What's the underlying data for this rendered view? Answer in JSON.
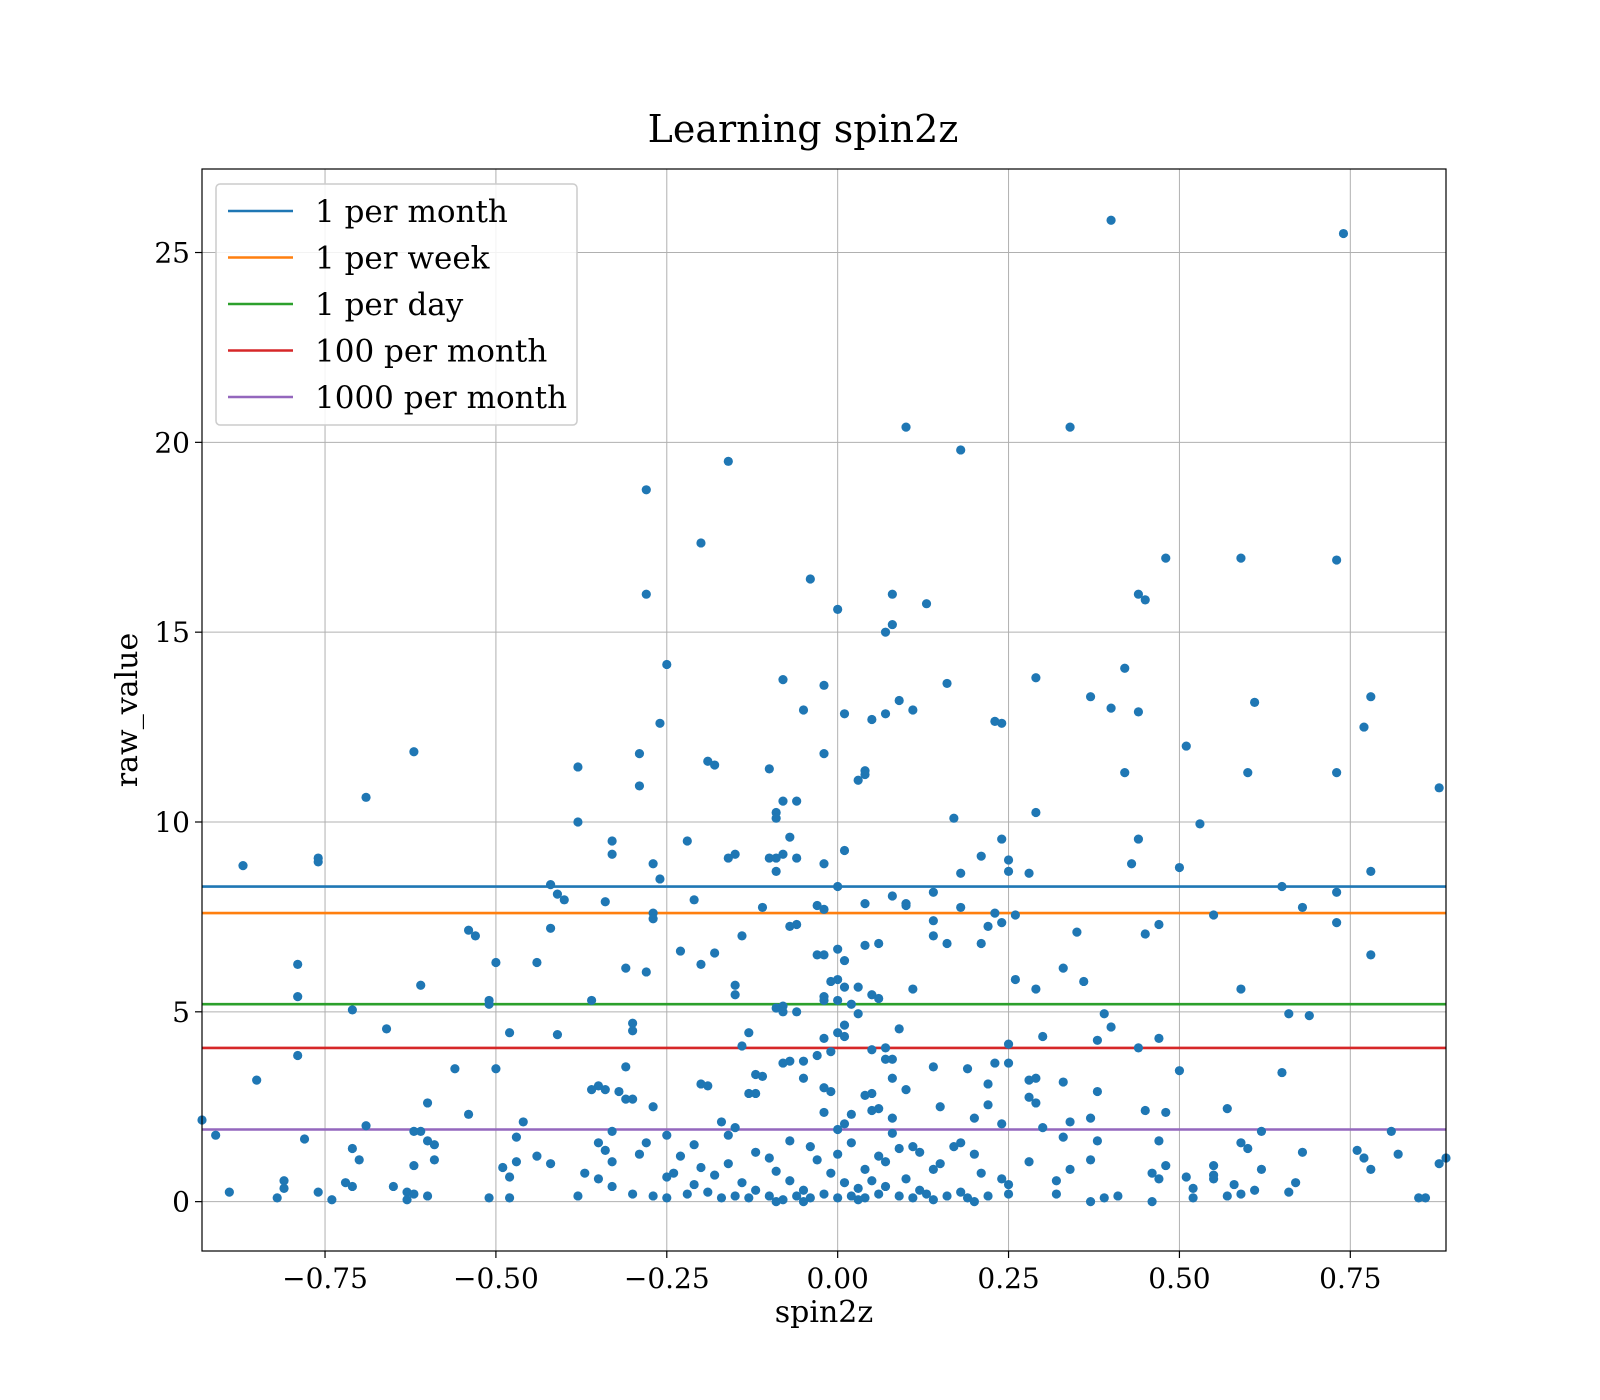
{
  "chart_data": {
    "type": "scatter",
    "title": "Learning spin2z",
    "xlabel": "spin2z",
    "ylabel": "raw_value",
    "xlim": [
      -0.93,
      0.89
    ],
    "ylim": [
      -1.3,
      27.2
    ],
    "xticks": [
      -0.75,
      -0.5,
      -0.25,
      0.0,
      0.25,
      0.5,
      0.75
    ],
    "xtick_labels": [
      "−0.75",
      "−0.50",
      "−0.25",
      "0.00",
      "0.25",
      "0.50",
      "0.75"
    ],
    "yticks": [
      0,
      5,
      10,
      15,
      20,
      25
    ],
    "ytick_labels": [
      "0",
      "5",
      "10",
      "15",
      "20",
      "25"
    ],
    "grid": true,
    "legend_position": "top-left",
    "point_color": "#1f77b4",
    "hlines": [
      {
        "name": "1 per month",
        "y": 8.3,
        "color": "#1f77b4"
      },
      {
        "name": "1 per week",
        "y": 7.6,
        "color": "#ff7f0e"
      },
      {
        "name": "1 per day",
        "y": 5.2,
        "color": "#2ca02c"
      },
      {
        "name": "100 per month",
        "y": 4.05,
        "color": "#d62728"
      },
      {
        "name": "1000 per month",
        "y": 1.9,
        "color": "#9467bd"
      }
    ],
    "points": [
      [
        0.4,
        25.85
      ],
      [
        0.74,
        25.5
      ],
      [
        0.1,
        20.4
      ],
      [
        0.34,
        20.4
      ],
      [
        0.18,
        19.8
      ],
      [
        -0.16,
        19.5
      ],
      [
        -0.28,
        18.75
      ],
      [
        -0.2,
        17.35
      ],
      [
        0.48,
        16.95
      ],
      [
        0.59,
        16.95
      ],
      [
        0.73,
        16.9
      ],
      [
        -0.04,
        16.4
      ],
      [
        -0.28,
        16.0
      ],
      [
        0.08,
        16.0
      ],
      [
        0.44,
        16.0
      ],
      [
        0.45,
        15.85
      ],
      [
        0.13,
        15.75
      ],
      [
        0.0,
        15.6
      ],
      [
        0.08,
        15.2
      ],
      [
        0.07,
        15.0
      ],
      [
        -0.25,
        14.15
      ],
      [
        0.42,
        14.05
      ],
      [
        -0.08,
        13.75
      ],
      [
        0.29,
        13.8
      ],
      [
        0.16,
        13.65
      ],
      [
        -0.02,
        13.6
      ],
      [
        0.37,
        13.3
      ],
      [
        0.78,
        13.3
      ],
      [
        0.09,
        13.2
      ],
      [
        0.61,
        13.15
      ],
      [
        0.4,
        13.0
      ],
      [
        0.44,
        12.9
      ],
      [
        -0.05,
        12.95
      ],
      [
        0.11,
        12.95
      ],
      [
        0.01,
        12.85
      ],
      [
        0.07,
        12.85
      ],
      [
        0.05,
        12.7
      ],
      [
        0.23,
        12.65
      ],
      [
        0.24,
        12.6
      ],
      [
        -0.26,
        12.6
      ],
      [
        0.77,
        12.5
      ],
      [
        0.51,
        12.0
      ],
      [
        -0.62,
        11.85
      ],
      [
        -0.29,
        11.8
      ],
      [
        -0.02,
        11.8
      ],
      [
        -0.19,
        11.6
      ],
      [
        -0.18,
        11.5
      ],
      [
        -0.38,
        11.45
      ],
      [
        -0.1,
        11.4
      ],
      [
        0.04,
        11.35
      ],
      [
        0.04,
        11.25
      ],
      [
        0.42,
        11.3
      ],
      [
        0.6,
        11.3
      ],
      [
        0.73,
        11.3
      ],
      [
        0.03,
        11.1
      ],
      [
        -0.29,
        10.95
      ],
      [
        0.88,
        10.9
      ],
      [
        -0.69,
        10.65
      ],
      [
        -0.08,
        10.55
      ],
      [
        -0.06,
        10.55
      ],
      [
        -0.09,
        10.25
      ],
      [
        0.29,
        10.25
      ],
      [
        -0.09,
        10.1
      ],
      [
        0.17,
        10.1
      ],
      [
        -0.38,
        10.0
      ],
      [
        0.53,
        9.95
      ],
      [
        0.44,
        9.55
      ],
      [
        0.24,
        9.55
      ],
      [
        -0.33,
        9.5
      ],
      [
        -0.22,
        9.5
      ],
      [
        -0.07,
        9.6
      ],
      [
        0.01,
        9.25
      ],
      [
        -0.33,
        9.15
      ],
      [
        -0.15,
        9.15
      ],
      [
        -0.1,
        9.05
      ],
      [
        -0.09,
        9.05
      ],
      [
        -0.16,
        9.05
      ],
      [
        -0.08,
        9.15
      ],
      [
        -0.06,
        9.05
      ],
      [
        0.21,
        9.1
      ],
      [
        0.25,
        9.0
      ],
      [
        -0.76,
        9.05
      ],
      [
        -0.76,
        8.95
      ],
      [
        -0.27,
        8.9
      ],
      [
        -0.02,
        8.9
      ],
      [
        0.43,
        8.9
      ],
      [
        -0.87,
        8.85
      ],
      [
        0.5,
        8.8
      ],
      [
        0.25,
        8.7
      ],
      [
        -0.09,
        8.7
      ],
      [
        0.28,
        8.65
      ],
      [
        0.78,
        8.7
      ],
      [
        0.18,
        8.65
      ],
      [
        -0.26,
        8.5
      ],
      [
        -0.42,
        8.35
      ],
      [
        0.0,
        8.3
      ],
      [
        0.65,
        8.3
      ],
      [
        0.14,
        8.15
      ],
      [
        0.73,
        8.15
      ],
      [
        -0.41,
        8.1
      ],
      [
        0.08,
        8.05
      ],
      [
        -0.4,
        7.95
      ],
      [
        -0.21,
        7.95
      ],
      [
        -0.34,
        7.9
      ],
      [
        0.04,
        7.85
      ],
      [
        0.1,
        7.85
      ],
      [
        0.1,
        7.8
      ],
      [
        -0.03,
        7.8
      ],
      [
        -0.02,
        7.7
      ],
      [
        -0.11,
        7.75
      ],
      [
        0.18,
        7.75
      ],
      [
        0.68,
        7.75
      ],
      [
        -0.27,
        7.6
      ],
      [
        0.23,
        7.6
      ],
      [
        0.26,
        7.55
      ],
      [
        0.55,
        7.55
      ],
      [
        -0.27,
        7.45
      ],
      [
        0.14,
        7.4
      ],
      [
        0.24,
        7.35
      ],
      [
        0.73,
        7.35
      ],
      [
        0.47,
        7.3
      ],
      [
        -0.06,
        7.3
      ],
      [
        -0.07,
        7.25
      ],
      [
        0.22,
        7.25
      ],
      [
        -0.42,
        7.2
      ],
      [
        -0.54,
        7.15
      ],
      [
        0.35,
        7.1
      ],
      [
        0.45,
        7.05
      ],
      [
        -0.53,
        7.0
      ],
      [
        -0.14,
        7.0
      ],
      [
        0.14,
        7.0
      ],
      [
        0.16,
        6.8
      ],
      [
        0.06,
        6.8
      ],
      [
        0.04,
        6.75
      ],
      [
        0.21,
        6.8
      ],
      [
        0.0,
        6.65
      ],
      [
        -0.23,
        6.6
      ],
      [
        -0.18,
        6.55
      ],
      [
        -0.03,
        6.5
      ],
      [
        -0.02,
        6.5
      ],
      [
        0.78,
        6.5
      ],
      [
        0.01,
        6.35
      ],
      [
        -0.5,
        6.3
      ],
      [
        -0.44,
        6.3
      ],
      [
        -0.2,
        6.25
      ],
      [
        -0.31,
        6.15
      ],
      [
        0.33,
        6.15
      ],
      [
        -0.28,
        6.05
      ],
      [
        -0.79,
        6.25
      ],
      [
        0.26,
        5.85
      ],
      [
        0.0,
        5.85
      ],
      [
        -0.01,
        5.8
      ],
      [
        0.36,
        5.8
      ],
      [
        0.03,
        5.65
      ],
      [
        0.01,
        5.65
      ],
      [
        -0.15,
        5.7
      ],
      [
        -0.61,
        5.7
      ],
      [
        0.11,
        5.6
      ],
      [
        0.29,
        5.6
      ],
      [
        0.59,
        5.6
      ],
      [
        -0.15,
        5.45
      ],
      [
        -0.02,
        5.4
      ],
      [
        -0.02,
        5.3
      ],
      [
        0.05,
        5.45
      ],
      [
        0.06,
        5.35
      ],
      [
        -0.79,
        5.4
      ],
      [
        -0.51,
        5.3
      ],
      [
        -0.36,
        5.3
      ],
      [
        0.0,
        5.3
      ],
      [
        -0.51,
        5.2
      ],
      [
        0.02,
        5.2
      ],
      [
        -0.08,
        5.15
      ],
      [
        -0.09,
        5.1
      ],
      [
        -0.71,
        5.05
      ],
      [
        -0.08,
        5.0
      ],
      [
        -0.06,
        5.0
      ],
      [
        0.03,
        4.95
      ],
      [
        0.39,
        4.95
      ],
      [
        0.66,
        4.95
      ],
      [
        0.69,
        4.9
      ],
      [
        -0.3,
        4.7
      ],
      [
        0.01,
        4.65
      ],
      [
        0.4,
        4.6
      ],
      [
        -0.13,
        4.45
      ],
      [
        -0.66,
        4.55
      ],
      [
        0.09,
        4.55
      ],
      [
        -0.48,
        4.45
      ],
      [
        -0.3,
        4.5
      ],
      [
        0.0,
        4.45
      ],
      [
        -0.41,
        4.4
      ],
      [
        0.01,
        4.35
      ],
      [
        -0.02,
        4.3
      ],
      [
        0.3,
        4.35
      ],
      [
        0.47,
        4.3
      ],
      [
        0.38,
        4.25
      ],
      [
        0.25,
        4.15
      ],
      [
        -0.14,
        4.1
      ],
      [
        0.44,
        4.05
      ],
      [
        0.05,
        4.0
      ],
      [
        0.07,
        4.05
      ],
      [
        -0.01,
        3.95
      ],
      [
        -0.79,
        3.85
      ],
      [
        -0.03,
        3.85
      ],
      [
        0.07,
        3.75
      ],
      [
        0.08,
        3.75
      ],
      [
        -0.07,
        3.7
      ],
      [
        -0.08,
        3.65
      ],
      [
        -0.05,
        3.7
      ],
      [
        0.14,
        3.55
      ],
      [
        0.25,
        3.65
      ],
      [
        0.23,
        3.65
      ],
      [
        -0.56,
        3.5
      ],
      [
        -0.5,
        3.5
      ],
      [
        -0.31,
        3.55
      ],
      [
        0.19,
        3.5
      ],
      [
        0.5,
        3.45
      ],
      [
        0.65,
        3.4
      ],
      [
        -0.12,
        3.35
      ],
      [
        -0.11,
        3.3
      ],
      [
        -0.05,
        3.25
      ],
      [
        0.08,
        3.25
      ],
      [
        0.28,
        3.2
      ],
      [
        -0.85,
        3.2
      ],
      [
        0.29,
        3.25
      ],
      [
        0.33,
        3.15
      ],
      [
        -0.2,
        3.1
      ],
      [
        -0.19,
        3.05
      ],
      [
        -0.35,
        3.05
      ],
      [
        -0.02,
        3.0
      ],
      [
        0.22,
        3.1
      ],
      [
        -0.34,
        2.95
      ],
      [
        -0.36,
        2.95
      ],
      [
        0.1,
        2.95
      ],
      [
        0.38,
        2.9
      ],
      [
        -0.01,
        2.9
      ],
      [
        0.05,
        2.85
      ],
      [
        -0.32,
        2.9
      ],
      [
        0.04,
        2.8
      ],
      [
        0.28,
        2.75
      ],
      [
        -0.12,
        2.85
      ],
      [
        -0.13,
        2.85
      ],
      [
        -0.31,
        2.7
      ],
      [
        -0.3,
        2.7
      ],
      [
        -0.6,
        2.6
      ],
      [
        -0.27,
        2.5
      ],
      [
        0.22,
        2.55
      ],
      [
        0.15,
        2.5
      ],
      [
        0.29,
        2.6
      ],
      [
        0.06,
        2.45
      ],
      [
        0.05,
        2.4
      ],
      [
        -0.02,
        2.35
      ],
      [
        0.45,
        2.4
      ],
      [
        0.48,
        2.35
      ],
      [
        0.02,
        2.3
      ],
      [
        0.57,
        2.45
      ],
      [
        -0.54,
        2.3
      ],
      [
        0.37,
        2.2
      ],
      [
        0.2,
        2.2
      ],
      [
        0.08,
        2.2
      ],
      [
        -0.93,
        2.15
      ],
      [
        -0.17,
        2.1
      ],
      [
        0.34,
        2.1
      ],
      [
        0.01,
        2.05
      ],
      [
        0.24,
        2.05
      ],
      [
        -0.69,
        2.0
      ],
      [
        -0.46,
        2.1
      ],
      [
        -0.15,
        1.95
      ],
      [
        0.3,
        1.95
      ],
      [
        0.0,
        1.9
      ],
      [
        -0.61,
        1.85
      ],
      [
        -0.62,
        1.85
      ],
      [
        -0.33,
        1.85
      ],
      [
        0.62,
        1.85
      ],
      [
        0.81,
        1.85
      ],
      [
        -0.91,
        1.75
      ],
      [
        -0.25,
        1.75
      ],
      [
        -0.16,
        1.75
      ],
      [
        0.08,
        1.8
      ],
      [
        -0.47,
        1.7
      ],
      [
        0.33,
        1.7
      ],
      [
        -0.78,
        1.65
      ],
      [
        -0.6,
        1.6
      ],
      [
        -0.35,
        1.55
      ],
      [
        -0.28,
        1.55
      ],
      [
        -0.21,
        1.5
      ],
      [
        0.18,
        1.55
      ],
      [
        0.47,
        1.6
      ],
      [
        0.38,
        1.6
      ],
      [
        0.59,
        1.55
      ],
      [
        -0.59,
        1.5
      ],
      [
        -0.04,
        1.45
      ],
      [
        0.11,
        1.45
      ],
      [
        0.17,
        1.45
      ],
      [
        0.6,
        1.4
      ],
      [
        0.76,
        1.35
      ],
      [
        -0.71,
        1.4
      ],
      [
        -0.34,
        1.35
      ],
      [
        0.68,
        1.3
      ],
      [
        0.82,
        1.25
      ],
      [
        0.89,
        1.15
      ],
      [
        0.2,
        1.25
      ],
      [
        -0.29,
        1.25
      ],
      [
        0.06,
        1.2
      ],
      [
        -0.44,
        1.2
      ],
      [
        -0.1,
        1.15
      ],
      [
        0.77,
        1.15
      ],
      [
        0.37,
        1.1
      ],
      [
        -0.7,
        1.1
      ],
      [
        -0.59,
        1.1
      ],
      [
        -0.47,
        1.05
      ],
      [
        -0.42,
        1.0
      ],
      [
        -0.33,
        1.05
      ],
      [
        0.28,
        1.05
      ],
      [
        0.48,
        0.95
      ],
      [
        0.55,
        0.95
      ],
      [
        0.88,
        1.0
      ],
      [
        -0.62,
        0.95
      ],
      [
        -0.49,
        0.9
      ],
      [
        -0.2,
        0.9
      ],
      [
        0.14,
        0.85
      ],
      [
        0.34,
        0.85
      ],
      [
        0.62,
        0.85
      ],
      [
        0.78,
        0.85
      ],
      [
        -0.37,
        0.75
      ],
      [
        -0.24,
        0.75
      ],
      [
        0.21,
        0.75
      ],
      [
        0.46,
        0.75
      ],
      [
        0.55,
        0.7
      ],
      [
        -0.48,
        0.65
      ],
      [
        -0.25,
        0.65
      ],
      [
        0.51,
        0.65
      ],
      [
        0.55,
        0.6
      ],
      [
        -0.35,
        0.6
      ],
      [
        0.47,
        0.6
      ],
      [
        -0.81,
        0.55
      ],
      [
        -0.72,
        0.5
      ],
      [
        0.32,
        0.55
      ],
      [
        0.67,
        0.5
      ],
      [
        -0.81,
        0.35
      ],
      [
        -0.71,
        0.4
      ],
      [
        -0.65,
        0.4
      ],
      [
        0.25,
        0.45
      ],
      [
        0.58,
        0.45
      ],
      [
        0.52,
        0.35
      ],
      [
        -0.89,
        0.25
      ],
      [
        -0.76,
        0.25
      ],
      [
        -0.63,
        0.25
      ],
      [
        -0.62,
        0.2
      ],
      [
        -0.6,
        0.15
      ],
      [
        -0.51,
        0.1
      ],
      [
        -0.48,
        0.1
      ],
      [
        -0.38,
        0.15
      ],
      [
        -0.3,
        0.2
      ],
      [
        -0.25,
        0.1
      ],
      [
        -0.22,
        0.2
      ],
      [
        -0.17,
        0.1
      ],
      [
        -0.15,
        0.15
      ],
      [
        -0.13,
        0.1
      ],
      [
        -0.1,
        0.15
      ],
      [
        -0.08,
        0.05
      ],
      [
        -0.06,
        0.15
      ],
      [
        -0.04,
        0.1
      ],
      [
        -0.02,
        0.2
      ],
      [
        0.0,
        0.1
      ],
      [
        0.02,
        0.15
      ],
      [
        0.04,
        0.1
      ],
      [
        0.06,
        0.2
      ],
      [
        0.09,
        0.15
      ],
      [
        0.11,
        0.1
      ],
      [
        0.13,
        0.2
      ],
      [
        0.16,
        0.15
      ],
      [
        0.19,
        0.1
      ],
      [
        0.22,
        0.15
      ],
      [
        0.25,
        0.2
      ],
      [
        0.32,
        0.2
      ],
      [
        0.37,
        0.0
      ],
      [
        0.39,
        0.1
      ],
      [
        0.41,
        0.15
      ],
      [
        0.46,
        0.0
      ],
      [
        0.52,
        0.1
      ],
      [
        0.57,
        0.15
      ],
      [
        0.59,
        0.2
      ],
      [
        0.61,
        0.3
      ],
      [
        0.66,
        0.25
      ],
      [
        0.85,
        0.1
      ],
      [
        0.86,
        0.1
      ],
      [
        -0.82,
        0.1
      ],
      [
        -0.74,
        0.05
      ],
      [
        -0.63,
        0.05
      ],
      [
        -0.27,
        0.15
      ],
      [
        -0.19,
        0.25
      ],
      [
        -0.12,
        0.3
      ],
      [
        -0.05,
        0.3
      ],
      [
        0.03,
        0.35
      ],
      [
        0.07,
        0.4
      ],
      [
        0.12,
        0.3
      ],
      [
        0.18,
        0.25
      ],
      [
        -0.33,
        0.4
      ],
      [
        -0.21,
        0.45
      ],
      [
        -0.14,
        0.5
      ],
      [
        -0.07,
        0.55
      ],
      [
        0.01,
        0.5
      ],
      [
        0.05,
        0.55
      ],
      [
        0.1,
        0.6
      ],
      [
        -0.18,
        0.7
      ],
      [
        -0.09,
        0.8
      ],
      [
        -0.01,
        0.75
      ],
      [
        0.04,
        0.85
      ],
      [
        -0.16,
        1.0
      ],
      [
        -0.03,
        1.1
      ],
      [
        0.07,
        1.05
      ],
      [
        -0.12,
        1.3
      ],
      [
        0.0,
        1.25
      ],
      [
        0.12,
        1.3
      ],
      [
        -0.07,
        1.6
      ],
      [
        0.02,
        1.55
      ],
      [
        0.09,
        1.4
      ],
      [
        -0.23,
        1.2
      ],
      [
        0.15,
        1.0
      ],
      [
        0.24,
        0.6
      ],
      [
        -0.05,
        0.0
      ],
      [
        0.03,
        0.05
      ],
      [
        0.14,
        0.05
      ],
      [
        0.2,
        0.0
      ],
      [
        -0.09,
        0.0
      ]
    ]
  }
}
